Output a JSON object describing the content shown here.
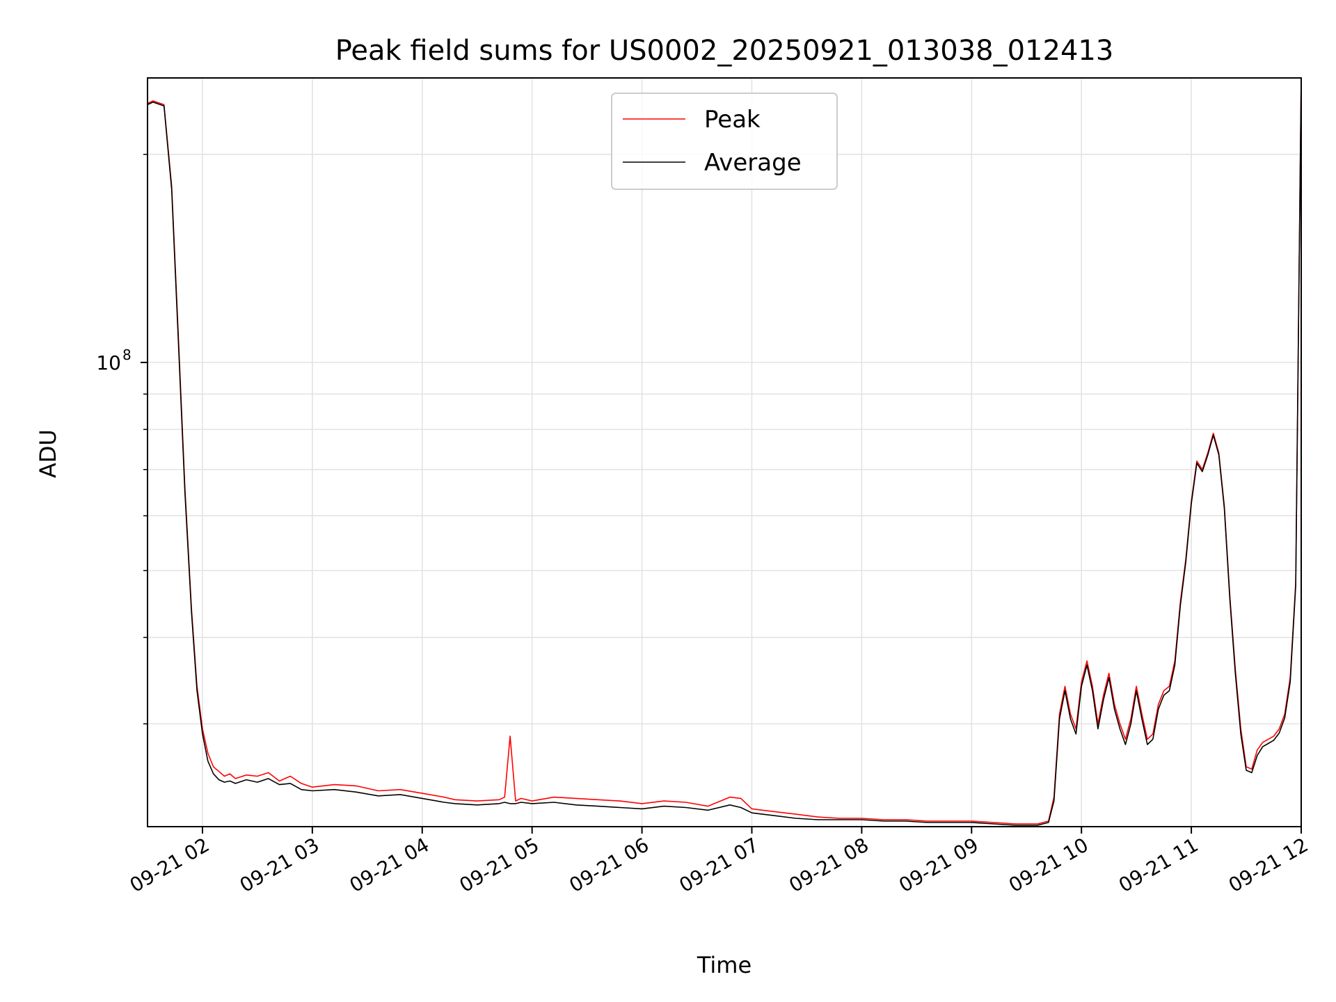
{
  "chart_data": {
    "type": "line",
    "title": "Peak field sums for US0002_20250921_013038_012413",
    "xlabel": "Time",
    "ylabel": "ADU",
    "yscale": "log",
    "xlim": [
      1.5,
      12.0
    ],
    "ylim": [
      21300000.0,
      258000000.0
    ],
    "grid": true,
    "x_ticks": [
      {
        "value": 2,
        "label": "09-21 02"
      },
      {
        "value": 3,
        "label": "09-21 03"
      },
      {
        "value": 4,
        "label": "09-21 04"
      },
      {
        "value": 5,
        "label": "09-21 05"
      },
      {
        "value": 6,
        "label": "09-21 06"
      },
      {
        "value": 7,
        "label": "09-21 07"
      },
      {
        "value": 8,
        "label": "09-21 08"
      },
      {
        "value": 9,
        "label": "09-21 09"
      },
      {
        "value": 10,
        "label": "09-21 10"
      },
      {
        "value": 11,
        "label": "09-21 11"
      },
      {
        "value": 12,
        "label": "09-21 12"
      }
    ],
    "y_major_tick": {
      "value": 100000000,
      "base": "10",
      "exponent": "8"
    },
    "y_minor_ticks": [
      30000000,
      40000000,
      50000000,
      60000000,
      70000000,
      80000000,
      90000000,
      200000000
    ],
    "legend": {
      "position": "top-center"
    },
    "series": [
      {
        "name": "Peak",
        "color": "#ff0000",
        "x": [
          1.5,
          1.55,
          1.65,
          1.72,
          1.78,
          1.84,
          1.9,
          1.95,
          2.0,
          2.05,
          2.1,
          2.15,
          2.2,
          2.25,
          2.3,
          2.4,
          2.5,
          2.6,
          2.7,
          2.8,
          2.9,
          3.0,
          3.2,
          3.4,
          3.6,
          3.8,
          4.0,
          4.2,
          4.3,
          4.5,
          4.7,
          4.75,
          4.8,
          4.85,
          4.9,
          5.0,
          5.2,
          5.4,
          5.6,
          5.8,
          6.0,
          6.2,
          6.4,
          6.6,
          6.8,
          6.9,
          7.0,
          7.2,
          7.4,
          7.6,
          7.8,
          8.0,
          8.2,
          8.4,
          8.6,
          8.8,
          9.0,
          9.2,
          9.4,
          9.6,
          9.7,
          9.75,
          9.8,
          9.85,
          9.9,
          9.95,
          10.0,
          10.05,
          10.1,
          10.15,
          10.2,
          10.25,
          10.3,
          10.35,
          10.4,
          10.45,
          10.5,
          10.55,
          10.6,
          10.65,
          10.7,
          10.75,
          10.8,
          10.85,
          10.9,
          10.95,
          11.0,
          11.05,
          11.1,
          11.15,
          11.2,
          11.25,
          11.3,
          11.35,
          11.4,
          11.45,
          11.5,
          11.55,
          11.6,
          11.65,
          11.7,
          11.75,
          11.8,
          11.85,
          11.9,
          11.95,
          12.0
        ],
        "values": [
          237000000,
          239000000,
          236000000,
          180000000,
          110000000,
          66000000,
          44000000,
          34000000,
          29500000,
          27200000,
          26000000,
          25600000,
          25200000,
          25400000,
          25000000,
          25300000,
          25200000,
          25500000,
          24800000,
          25200000,
          24600000,
          24300000,
          24500000,
          24400000,
          24000000,
          24100000,
          23800000,
          23500000,
          23300000,
          23200000,
          23300000,
          23500000,
          28800000,
          23200000,
          23400000,
          23200000,
          23500000,
          23400000,
          23300000,
          23200000,
          23000000,
          23200000,
          23100000,
          22800000,
          23500000,
          23400000,
          22600000,
          22400000,
          22200000,
          22000000,
          21900000,
          21900000,
          21800000,
          21800000,
          21700000,
          21700000,
          21700000,
          21600000,
          21500000,
          21500000,
          21700000,
          23500000,
          31000000,
          34000000,
          31000000,
          29500000,
          34500000,
          37000000,
          34000000,
          30000000,
          33000000,
          35500000,
          32000000,
          30000000,
          28500000,
          30500000,
          34000000,
          31000000,
          28500000,
          29000000,
          32000000,
          33500000,
          34000000,
          37000000,
          45000000,
          52000000,
          63000000,
          72000000,
          70000000,
          74000000,
          79000000,
          74000000,
          62000000,
          46000000,
          36000000,
          29500000,
          26000000,
          25800000,
          27500000,
          28200000,
          28500000,
          28800000,
          29500000,
          31000000,
          35000000,
          48000000,
          260000000
        ]
      },
      {
        "name": "Average",
        "color": "#000000",
        "x": [
          1.5,
          1.55,
          1.65,
          1.72,
          1.78,
          1.84,
          1.9,
          1.95,
          2.0,
          2.05,
          2.1,
          2.15,
          2.2,
          2.25,
          2.3,
          2.4,
          2.5,
          2.6,
          2.7,
          2.8,
          2.9,
          3.0,
          3.2,
          3.4,
          3.6,
          3.8,
          4.0,
          4.2,
          4.3,
          4.5,
          4.7,
          4.75,
          4.8,
          4.85,
          4.9,
          5.0,
          5.2,
          5.4,
          5.6,
          5.8,
          6.0,
          6.2,
          6.4,
          6.6,
          6.8,
          6.9,
          7.0,
          7.2,
          7.4,
          7.6,
          7.8,
          8.0,
          8.2,
          8.4,
          8.6,
          8.8,
          9.0,
          9.2,
          9.4,
          9.6,
          9.7,
          9.75,
          9.8,
          9.85,
          9.9,
          9.95,
          10.0,
          10.05,
          10.1,
          10.15,
          10.2,
          10.25,
          10.3,
          10.35,
          10.4,
          10.45,
          10.5,
          10.55,
          10.6,
          10.65,
          10.7,
          10.75,
          10.8,
          10.85,
          10.9,
          10.95,
          11.0,
          11.05,
          11.1,
          11.15,
          11.2,
          11.25,
          11.3,
          11.35,
          11.4,
          11.45,
          11.5,
          11.55,
          11.6,
          11.65,
          11.7,
          11.75,
          11.8,
          11.85,
          11.9,
          11.95,
          12.0
        ],
        "values": [
          236000000,
          238000000,
          235000000,
          178000000,
          108000000,
          65000000,
          43500000,
          33500000,
          29000000,
          26500000,
          25400000,
          24900000,
          24700000,
          24800000,
          24600000,
          24900000,
          24700000,
          25000000,
          24500000,
          24600000,
          24100000,
          24000000,
          24100000,
          23900000,
          23600000,
          23700000,
          23400000,
          23100000,
          23000000,
          22900000,
          23000000,
          23100000,
          23000000,
          23000000,
          23100000,
          23000000,
          23100000,
          22900000,
          22800000,
          22700000,
          22600000,
          22800000,
          22700000,
          22500000,
          22900000,
          22700000,
          22300000,
          22100000,
          21900000,
          21800000,
          21800000,
          21800000,
          21700000,
          21700000,
          21600000,
          21600000,
          21600000,
          21500000,
          21400000,
          21400000,
          21600000,
          23200000,
          30500000,
          33500000,
          30500000,
          29000000,
          34000000,
          36500000,
          33500000,
          29500000,
          32500000,
          35000000,
          31500000,
          29500000,
          28000000,
          30000000,
          33500000,
          30500000,
          28000000,
          28500000,
          31500000,
          33000000,
          33500000,
          36500000,
          44500000,
          51500000,
          62500000,
          71500000,
          69500000,
          73500000,
          78500000,
          73500000,
          61500000,
          45500000,
          35500000,
          29000000,
          25700000,
          25500000,
          27000000,
          27800000,
          28100000,
          28400000,
          29100000,
          30600000,
          34500000,
          47500000,
          258000000
        ]
      }
    ]
  }
}
